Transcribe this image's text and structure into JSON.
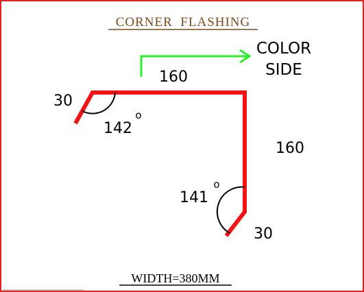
{
  "title": "CORNER  FLASHING",
  "footer": "WIDTH=380MM",
  "color_side": {
    "line1": "COLOR",
    "line2": "SIDE"
  },
  "dimensions": {
    "top_segment": "160",
    "right_segment": "160",
    "left_lip": "30",
    "bottom_lip": "30"
  },
  "angles": {
    "top_left": {
      "value": "142",
      "unit": "o"
    },
    "bottom_right": {
      "value": "141",
      "unit": "o"
    }
  },
  "colors": {
    "flashing": "#f21414",
    "arrow": "#2cf02c",
    "title": "#7a4a1a",
    "border": "#e8201c",
    "ink": "#000000"
  }
}
